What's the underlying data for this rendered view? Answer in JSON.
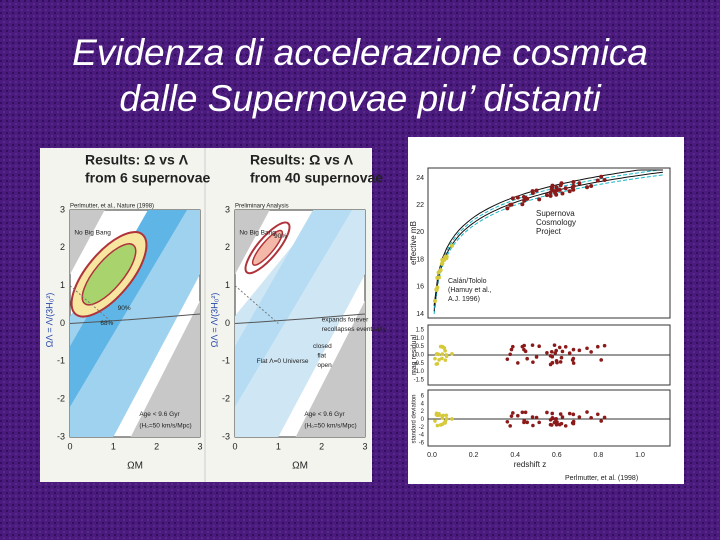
{
  "title": {
    "lines": [
      "Evidenza di accelerazione cosmica",
      "dalle Supernovae piu’ distanti"
    ]
  },
  "figures": [
    {
      "heading": "Results: Ω vs Λ",
      "subheading": "from 6 supernovae",
      "source": "Perlmutter, et al., Nature (1998)",
      "yticks": [
        "3",
        "2",
        "1",
        "0",
        "-1",
        "-2",
        "-3"
      ],
      "xticks": [
        "0",
        "1",
        "2",
        "3"
      ],
      "x_label": "ΩM",
      "y_label": "ΩΛ = Λ/(3H₀²)",
      "labels": [
        "No Big Bang",
        "68%",
        "90%",
        "Age < 9.6 Gyr",
        "(H₀=50 km/s/Mpc)"
      ]
    },
    {
      "heading": "Results: Ω vs Λ",
      "subheading": "from 40 supernovae",
      "source": "Preliminary Analysis",
      "yticks": [
        "3",
        "2",
        "1",
        "0",
        "-1",
        "-2",
        "-3"
      ],
      "xticks": [
        "0",
        "1",
        "2",
        "3"
      ],
      "x_label": "ΩM",
      "y_label": "ΩΛ = Λ/(3H₀²)",
      "labels": [
        "No Big Bang",
        "90%",
        "expands forever",
        "recollapses eventually",
        "closed",
        "flat",
        "open",
        "Flat Λ=0 Universe",
        "Age < 9.6 Gyr",
        "(H₀=50 km/s/Mpc)"
      ]
    },
    {
      "main_yticks": [
        "24",
        "22",
        "20",
        "18",
        "16",
        "14"
      ],
      "residual_yticks": [
        "1.5",
        "1.0",
        "0.5",
        "0.0",
        "-0.5",
        "-1.0",
        "-1.5"
      ],
      "std_yticks": [
        "6",
        "4",
        "2",
        "0",
        "-2",
        "-4",
        "-6"
      ],
      "xticks": [
        "0.0",
        "0.2",
        "0.4",
        "0.6",
        "0.8",
        "1.0"
      ],
      "main_label": "effective mB",
      "residual_label": "mag residual",
      "std_label": "standard deviation",
      "x_label": "redshift z",
      "project": [
        "Supernova",
        "Cosmology",
        "Project"
      ],
      "calan": [
        "Calán/Tololo",
        "(Hamuy et al.,",
        "A.J. 1996)"
      ],
      "source": "Perlmutter, et al. (1998)"
    }
  ]
}
